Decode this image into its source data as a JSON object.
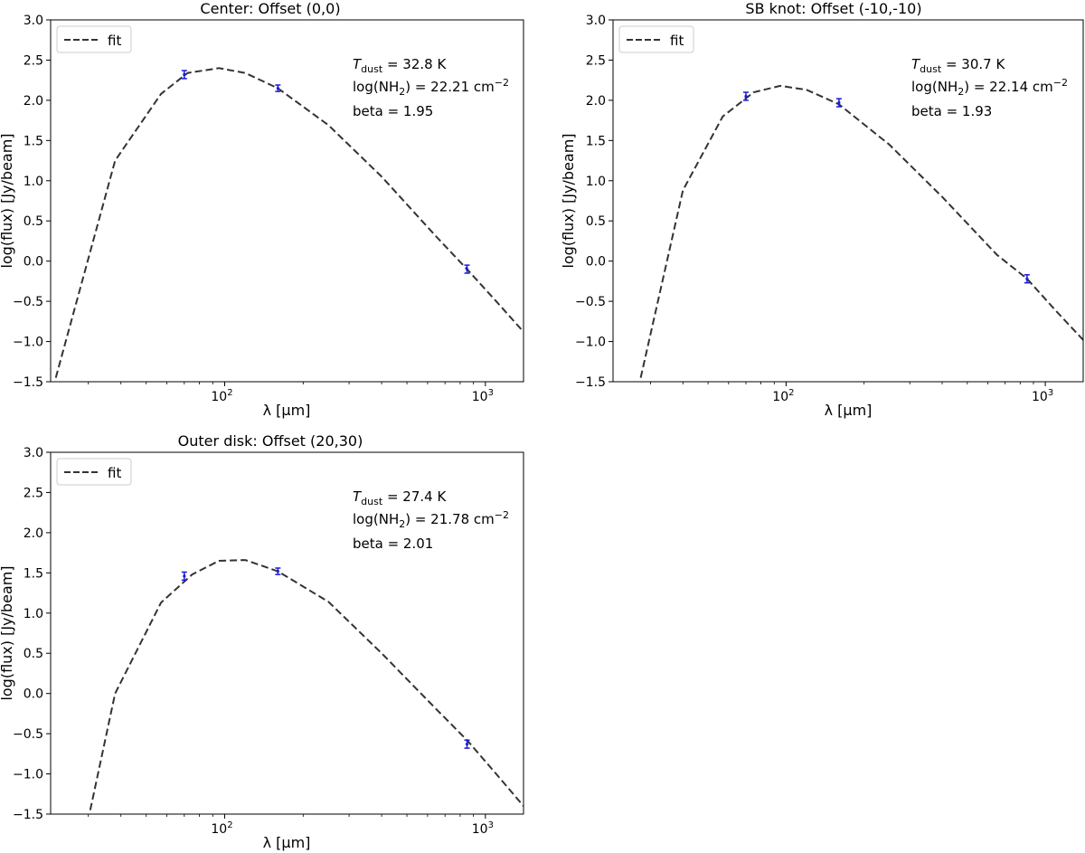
{
  "chart_data": [
    {
      "type": "line",
      "title": "Center: Offset (0,0)",
      "xlabel": "λ [μm]",
      "ylabel": "log(flux) [Jy/beam]",
      "xscale": "log",
      "xlim": [
        21.5,
        1400
      ],
      "ylim": [
        -1.5,
        3.0
      ],
      "yticks": [
        "-1.5",
        "-1.0",
        "-0.5",
        "0.0",
        "0.5",
        "1.0",
        "1.5",
        "2.0",
        "2.5",
        "3.0"
      ],
      "xticks": [
        {
          "base": "10",
          "exp": "2"
        },
        {
          "base": "10",
          "exp": "3"
        }
      ],
      "legend": {
        "label": "fit",
        "position": "top-left"
      },
      "annotations": {
        "t_sym": "T",
        "t_sub": "dust",
        "t_val": " =  32.8 K",
        "n_pre": "log(NH",
        "n_sub": "2",
        "n_mid": ") = 22.21 cm",
        "n_sup": "−2",
        "beta": "beta =  1.95"
      },
      "fit": {
        "x": [
          22.5,
          38,
          57,
          72,
          95,
          120,
          160,
          250,
          400,
          650,
          850,
          1100,
          1400
        ],
        "y": [
          -1.45,
          1.25,
          2.08,
          2.34,
          2.4,
          2.34,
          2.15,
          1.69,
          1.05,
          0.3,
          -0.1,
          -0.5,
          -0.88
        ]
      },
      "points": [
        {
          "x": 70,
          "y": 2.32,
          "err": 0.05
        },
        {
          "x": 160,
          "y": 2.15,
          "err": 0.04
        },
        {
          "x": 850,
          "y": -0.1,
          "err": 0.05
        }
      ]
    },
    {
      "type": "line",
      "title": "SB knot: Offset (-10,-10)",
      "xlabel": "λ [μm]",
      "ylabel": "log(flux) [Jy/beam]",
      "xscale": "log",
      "xlim": [
        21.5,
        1400
      ],
      "ylim": [
        -1.5,
        3.0
      ],
      "yticks": [
        "-1.5",
        "-1.0",
        "-0.5",
        "0.0",
        "0.5",
        "1.0",
        "1.5",
        "2.0",
        "2.5",
        "3.0"
      ],
      "xticks": [
        {
          "base": "10",
          "exp": "2"
        },
        {
          "base": "10",
          "exp": "3"
        }
      ],
      "legend": {
        "label": "fit",
        "position": "top-left"
      },
      "annotations": {
        "t_sym": "T",
        "t_sub": "dust",
        "t_val": " =  30.7 K",
        "n_pre": "log(NH",
        "n_sub": "2",
        "n_mid": ") = 22.14 cm",
        "n_sup": "−2",
        "beta": "beta =  1.93"
      },
      "fit": {
        "x": [
          27.5,
          40,
          57,
          75,
          95,
          120,
          160,
          250,
          400,
          650,
          850,
          1100,
          1400
        ],
        "y": [
          -1.45,
          0.88,
          1.8,
          2.1,
          2.18,
          2.13,
          1.95,
          1.45,
          0.8,
          0.08,
          -0.22,
          -0.62,
          -0.98
        ]
      },
      "points": [
        {
          "x": 70,
          "y": 2.05,
          "err": 0.05
        },
        {
          "x": 160,
          "y": 1.97,
          "err": 0.05
        },
        {
          "x": 850,
          "y": -0.22,
          "err": 0.05
        }
      ]
    },
    {
      "type": "line",
      "title": "Outer disk: Offset (20,30)",
      "xlabel": "λ [μm]",
      "ylabel": "log(flux) [Jy/beam]",
      "xscale": "log",
      "xlim": [
        21.5,
        1400
      ],
      "ylim": [
        -1.5,
        3.0
      ],
      "yticks": [
        "-1.5",
        "-1.0",
        "-0.5",
        "0.0",
        "0.5",
        "1.0",
        "1.5",
        "2.0",
        "2.5",
        "3.0"
      ],
      "xticks": [
        {
          "base": "10",
          "exp": "2"
        },
        {
          "base": "10",
          "exp": "3"
        }
      ],
      "legend": {
        "label": "fit",
        "position": "top-left"
      },
      "annotations": {
        "t_sym": "T",
        "t_sub": "dust",
        "t_val": " =  27.4 K",
        "n_pre": "log(NH",
        "n_sub": "2",
        "n_mid": ") = 21.78 cm",
        "n_sup": "−2",
        "beta": "beta =  2.01"
      },
      "fit": {
        "x": [
          30.5,
          38,
          57,
          75,
          95,
          120,
          160,
          250,
          400,
          650,
          850,
          1100,
          1400
        ],
        "y": [
          -1.45,
          0.0,
          1.13,
          1.48,
          1.65,
          1.66,
          1.52,
          1.14,
          0.5,
          -0.2,
          -0.58,
          -1.0,
          -1.4
        ]
      },
      "points": [
        {
          "x": 70,
          "y": 1.46,
          "err": 0.05
        },
        {
          "x": 160,
          "y": 1.52,
          "err": 0.04
        },
        {
          "x": 850,
          "y": -0.63,
          "err": 0.05
        }
      ]
    }
  ],
  "colors": {
    "fit_line": "#333333",
    "points": "#1a1adb",
    "legend_border": "#cccccc"
  }
}
